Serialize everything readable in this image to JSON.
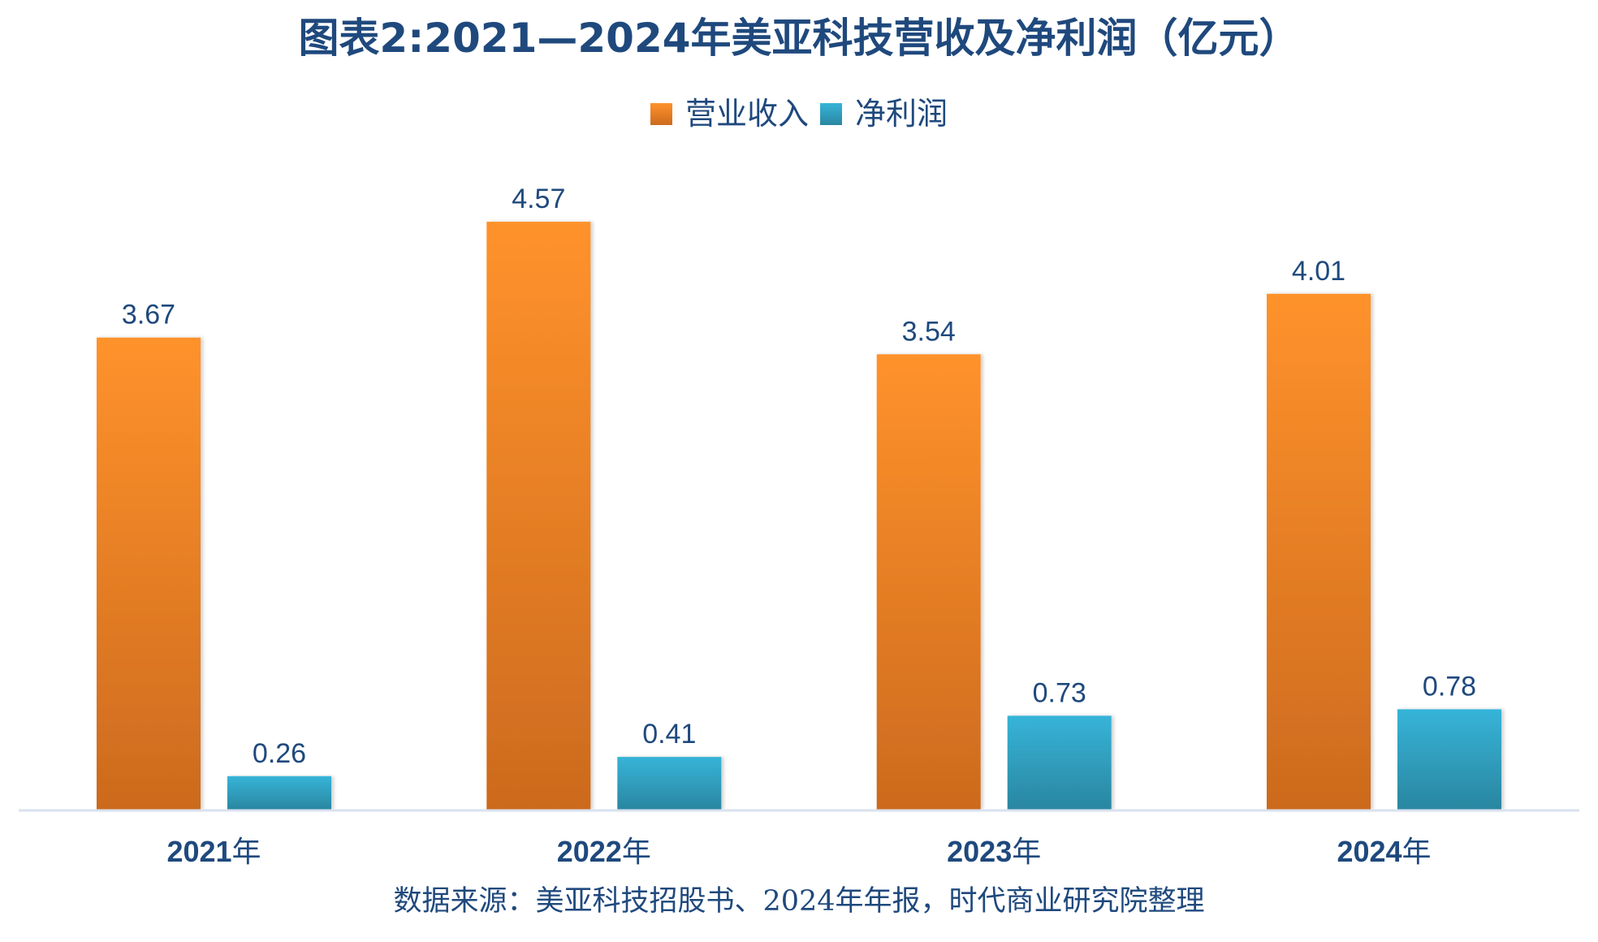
{
  "title": "图表2:2021—2024年美亚科技营收及净利润（亿元）",
  "legend": [
    {
      "label": "营业收入",
      "color": "#FF922B"
    },
    {
      "label": "净利润",
      "color": "#36B4D8"
    }
  ],
  "source": "数据来源：美亚科技招股书、2024年年报，时代商业研究院整理",
  "colors": {
    "text": "#1F497D",
    "revenue_top": "#FF922B",
    "revenue_bottom": "#CC6A1E",
    "profit_top": "#36B4D8",
    "profit_bottom": "#2A86A0",
    "axis": "#D9E2EF"
  },
  "chart_data": {
    "type": "bar",
    "title": "图表2:2021—2024年美亚科技营收及净利润（亿元）",
    "xlabel": "",
    "ylabel": "",
    "categories": [
      "2021年",
      "2022年",
      "2023年",
      "2024年"
    ],
    "category_parts": [
      {
        "num": "2021",
        "suffix": "年"
      },
      {
        "num": "2022",
        "suffix": "年"
      },
      {
        "num": "2023",
        "suffix": "年"
      },
      {
        "num": "2024",
        "suffix": "年"
      }
    ],
    "series": [
      {
        "name": "营业收入",
        "values": [
          3.67,
          4.57,
          3.54,
          4.01
        ],
        "labels": [
          "3.67",
          "4.57",
          "3.54",
          "4.01"
        ]
      },
      {
        "name": "净利润",
        "values": [
          0.26,
          0.41,
          0.73,
          0.78
        ],
        "labels": [
          "0.26",
          "0.41",
          "0.73",
          "0.78"
        ]
      }
    ],
    "ylim": [
      0,
      5
    ],
    "grid": false,
    "legend_position": "top-center",
    "y_axis_visible": false
  }
}
